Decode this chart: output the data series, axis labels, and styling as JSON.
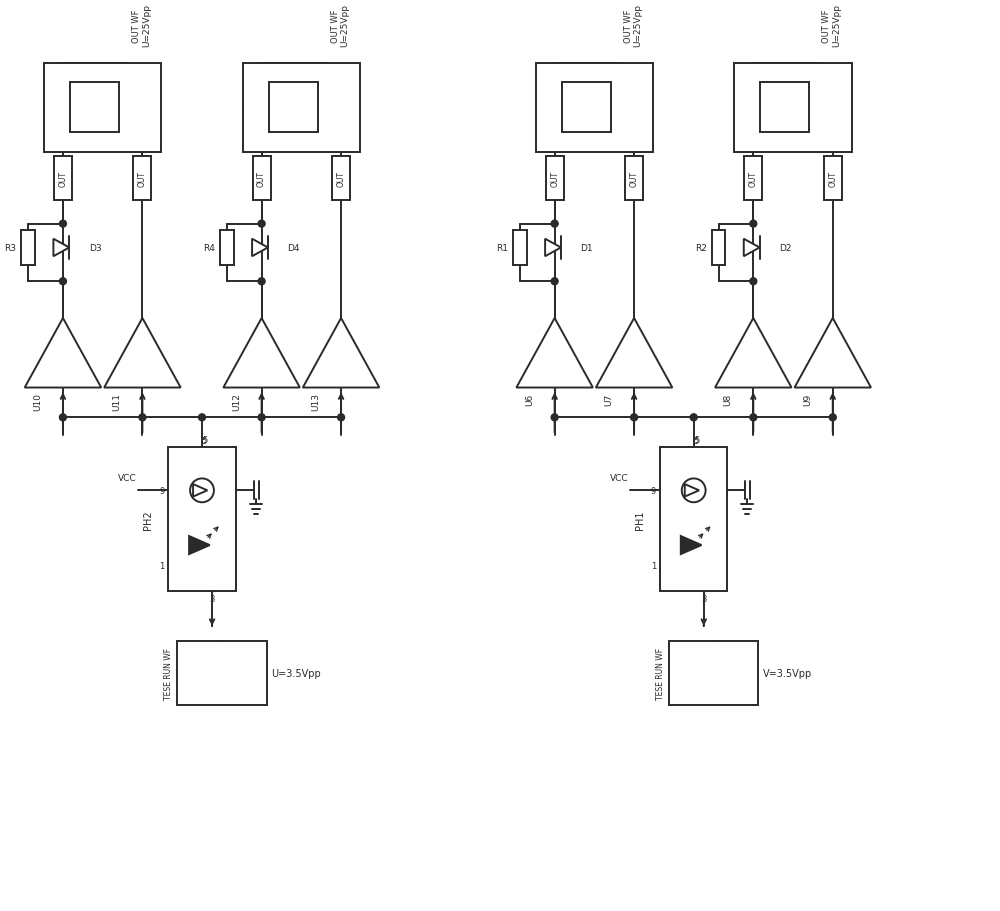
{
  "bg_color": "#ffffff",
  "line_color": "#2a2a2a",
  "figsize": [
    10.0,
    9.12
  ],
  "dpi": 100,
  "left_buffers": [
    "U10",
    "U11",
    "U12",
    "U13"
  ],
  "right_buffers": [
    "U6",
    "U7",
    "U8",
    "U9"
  ],
  "left_resistors": [
    "R3",
    "R4"
  ],
  "right_resistors": [
    "R1",
    "R2"
  ],
  "left_diodes": [
    "D3",
    "D4"
  ],
  "right_diodes": [
    "D1",
    "D2"
  ],
  "left_opto": "PH2",
  "right_opto": "PH1",
  "out_wf_label": "OUT WF",
  "out_voltage": "U=25Vpp",
  "left_in_voltage": "U=3.5Vpp",
  "right_in_voltage": "V=3.5Vpp",
  "tese_label": "TESE RUN WF",
  "vcc_label": "VCC",
  "out_label": "OUT",
  "pin5": "5",
  "pin9": "9",
  "pin1": "1",
  "pin3": "3"
}
